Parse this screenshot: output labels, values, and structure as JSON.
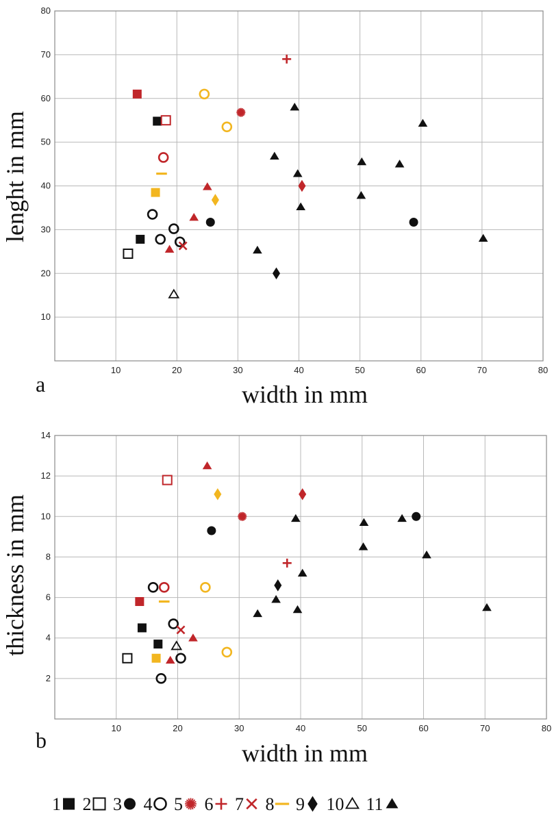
{
  "colors": {
    "black": "#111111",
    "red": "#c0262a",
    "yellow": "#f2b620"
  },
  "legend": [
    {
      "id": "1",
      "label": "1",
      "marker": "square",
      "fill": true,
      "color": "#111111"
    },
    {
      "id": "2",
      "label": "2",
      "marker": "square",
      "fill": false,
      "color": "#111111"
    },
    {
      "id": "3",
      "label": "3",
      "marker": "circle",
      "fill": true,
      "color": "#111111"
    },
    {
      "id": "4",
      "label": "4",
      "marker": "circle",
      "fill": false,
      "color": "#111111"
    },
    {
      "id": "5",
      "label": "5",
      "marker": "star",
      "fill": true,
      "color": "#c0262a"
    },
    {
      "id": "6",
      "label": "6",
      "marker": "plus",
      "fill": true,
      "color": "#c0262a"
    },
    {
      "id": "7",
      "label": "7",
      "marker": "cross",
      "fill": true,
      "color": "#c0262a"
    },
    {
      "id": "8",
      "label": "8",
      "marker": "dash",
      "fill": true,
      "color": "#f2b620"
    },
    {
      "id": "9",
      "label": "9",
      "marker": "diamond",
      "fill": true,
      "color": "#111111"
    },
    {
      "id": "10",
      "label": "10",
      "marker": "triangle",
      "fill": false,
      "color": "#111111"
    },
    {
      "id": "11",
      "label": "11",
      "marker": "triangle",
      "fill": true,
      "color": "#111111"
    }
  ],
  "chart_data": [
    {
      "type": "scatter",
      "panel": "a",
      "xlabel": "width in mm",
      "ylabel": "lenght in mm",
      "xlim": [
        0,
        80
      ],
      "ylim": [
        0,
        80
      ],
      "xticks": [
        10,
        20,
        30,
        40,
        50,
        60,
        70,
        80
      ],
      "yticks": [
        10,
        20,
        30,
        40,
        50,
        60,
        70,
        80
      ],
      "grid": true,
      "points": [
        {
          "x": 13.5,
          "y": 61,
          "marker": "square",
          "fill": true,
          "color": "#c0262a"
        },
        {
          "x": 16.8,
          "y": 54.8,
          "marker": "square",
          "fill": true,
          "color": "#111111"
        },
        {
          "x": 18.2,
          "y": 55,
          "marker": "square",
          "fill": false,
          "color": "#c0262a"
        },
        {
          "x": 14,
          "y": 27.8,
          "marker": "square",
          "fill": true,
          "color": "#111111"
        },
        {
          "x": 12,
          "y": 24.5,
          "marker": "square",
          "fill": false,
          "color": "#111111"
        },
        {
          "x": 16.5,
          "y": 38.5,
          "marker": "square",
          "fill": true,
          "color": "#f2b620"
        },
        {
          "x": 24.5,
          "y": 61,
          "marker": "circle",
          "fill": false,
          "color": "#f2b620"
        },
        {
          "x": 28.2,
          "y": 53.5,
          "marker": "circle",
          "fill": false,
          "color": "#f2b620"
        },
        {
          "x": 17.8,
          "y": 46.5,
          "marker": "circle",
          "fill": false,
          "color": "#c0262a"
        },
        {
          "x": 16,
          "y": 33.5,
          "marker": "circle",
          "fill": false,
          "color": "#111111"
        },
        {
          "x": 19.5,
          "y": 30.2,
          "marker": "circle",
          "fill": false,
          "color": "#111111"
        },
        {
          "x": 17.3,
          "y": 27.8,
          "marker": "circle",
          "fill": false,
          "color": "#111111"
        },
        {
          "x": 20.5,
          "y": 27.2,
          "marker": "circle",
          "fill": false,
          "color": "#111111"
        },
        {
          "x": 25.5,
          "y": 31.7,
          "marker": "circle",
          "fill": true,
          "color": "#111111"
        },
        {
          "x": 58.8,
          "y": 31.7,
          "marker": "circle",
          "fill": true,
          "color": "#111111"
        },
        {
          "x": 30.5,
          "y": 56.8,
          "marker": "star",
          "fill": true,
          "color": "#c0262a"
        },
        {
          "x": 38,
          "y": 69,
          "marker": "plus",
          "fill": true,
          "color": "#c0262a"
        },
        {
          "x": 21,
          "y": 26.3,
          "marker": "cross",
          "fill": true,
          "color": "#c0262a"
        },
        {
          "x": 17.5,
          "y": 42.8,
          "marker": "dash",
          "fill": true,
          "color": "#f2b620"
        },
        {
          "x": 26.3,
          "y": 36.8,
          "marker": "diamond",
          "fill": true,
          "color": "#f2b620"
        },
        {
          "x": 40.5,
          "y": 40,
          "marker": "diamond",
          "fill": true,
          "color": "#c0262a"
        },
        {
          "x": 36.3,
          "y": 20,
          "marker": "diamond",
          "fill": true,
          "color": "#111111"
        },
        {
          "x": 25,
          "y": 39.8,
          "marker": "triangle",
          "fill": true,
          "color": "#c0262a"
        },
        {
          "x": 22.8,
          "y": 32.8,
          "marker": "triangle",
          "fill": true,
          "color": "#c0262a"
        },
        {
          "x": 18.8,
          "y": 25.5,
          "marker": "triangle",
          "fill": true,
          "color": "#c0262a"
        },
        {
          "x": 19.5,
          "y": 15.2,
          "marker": "triangle",
          "fill": false,
          "color": "#111111"
        },
        {
          "x": 39.3,
          "y": 58,
          "marker": "triangle",
          "fill": true,
          "color": "#111111"
        },
        {
          "x": 36,
          "y": 46.8,
          "marker": "triangle",
          "fill": true,
          "color": "#111111"
        },
        {
          "x": 39.8,
          "y": 42.8,
          "marker": "triangle",
          "fill": true,
          "color": "#111111"
        },
        {
          "x": 40.3,
          "y": 35.2,
          "marker": "triangle",
          "fill": true,
          "color": "#111111"
        },
        {
          "x": 33.2,
          "y": 25.3,
          "marker": "triangle",
          "fill": true,
          "color": "#111111"
        },
        {
          "x": 50.3,
          "y": 45.5,
          "marker": "triangle",
          "fill": true,
          "color": "#111111"
        },
        {
          "x": 50.2,
          "y": 37.8,
          "marker": "triangle",
          "fill": true,
          "color": "#111111"
        },
        {
          "x": 56.5,
          "y": 45,
          "marker": "triangle",
          "fill": true,
          "color": "#111111"
        },
        {
          "x": 60.3,
          "y": 54.3,
          "marker": "triangle",
          "fill": true,
          "color": "#111111"
        },
        {
          "x": 70.2,
          "y": 28,
          "marker": "triangle",
          "fill": true,
          "color": "#111111"
        }
      ]
    },
    {
      "type": "scatter",
      "panel": "b",
      "xlabel": "width in mm",
      "ylabel": "thickness in mm",
      "xlim": [
        0,
        80
      ],
      "ylim": [
        0,
        14
      ],
      "xticks": [
        10,
        20,
        30,
        40,
        50,
        60,
        70,
        80
      ],
      "yticks": [
        2,
        4,
        6,
        8,
        10,
        12,
        14
      ],
      "grid": true,
      "points": [
        {
          "x": 18.3,
          "y": 11.8,
          "marker": "square",
          "fill": false,
          "color": "#c0262a"
        },
        {
          "x": 13.8,
          "y": 5.8,
          "marker": "square",
          "fill": true,
          "color": "#c0262a"
        },
        {
          "x": 14.2,
          "y": 4.5,
          "marker": "square",
          "fill": true,
          "color": "#111111"
        },
        {
          "x": 16.8,
          "y": 3.7,
          "marker": "square",
          "fill": true,
          "color": "#111111"
        },
        {
          "x": 11.8,
          "y": 3.0,
          "marker": "square",
          "fill": false,
          "color": "#111111"
        },
        {
          "x": 16.5,
          "y": 3.0,
          "marker": "square",
          "fill": true,
          "color": "#f2b620"
        },
        {
          "x": 16,
          "y": 6.5,
          "marker": "circle",
          "fill": false,
          "color": "#111111"
        },
        {
          "x": 17.8,
          "y": 6.5,
          "marker": "circle",
          "fill": false,
          "color": "#c0262a"
        },
        {
          "x": 24.5,
          "y": 6.5,
          "marker": "circle",
          "fill": false,
          "color": "#f2b620"
        },
        {
          "x": 19.3,
          "y": 4.7,
          "marker": "circle",
          "fill": false,
          "color": "#111111"
        },
        {
          "x": 20.5,
          "y": 3.0,
          "marker": "circle",
          "fill": false,
          "color": "#111111"
        },
        {
          "x": 17.3,
          "y": 2.0,
          "marker": "circle",
          "fill": false,
          "color": "#111111"
        },
        {
          "x": 28,
          "y": 3.3,
          "marker": "circle",
          "fill": false,
          "color": "#f2b620"
        },
        {
          "x": 25.5,
          "y": 9.3,
          "marker": "circle",
          "fill": true,
          "color": "#111111"
        },
        {
          "x": 58.8,
          "y": 10,
          "marker": "circle",
          "fill": true,
          "color": "#111111"
        },
        {
          "x": 30.5,
          "y": 10,
          "marker": "star",
          "fill": true,
          "color": "#c0262a"
        },
        {
          "x": 37.8,
          "y": 7.7,
          "marker": "plus",
          "fill": true,
          "color": "#c0262a"
        },
        {
          "x": 20.5,
          "y": 4.4,
          "marker": "cross",
          "fill": true,
          "color": "#c0262a"
        },
        {
          "x": 17.8,
          "y": 5.8,
          "marker": "dash",
          "fill": true,
          "color": "#f2b620"
        },
        {
          "x": 26.5,
          "y": 11.1,
          "marker": "diamond",
          "fill": true,
          "color": "#f2b620"
        },
        {
          "x": 40.3,
          "y": 11.1,
          "marker": "diamond",
          "fill": true,
          "color": "#c0262a"
        },
        {
          "x": 36.3,
          "y": 6.6,
          "marker": "diamond",
          "fill": true,
          "color": "#111111"
        },
        {
          "x": 24.8,
          "y": 12.5,
          "marker": "triangle",
          "fill": true,
          "color": "#c0262a"
        },
        {
          "x": 22.5,
          "y": 4.0,
          "marker": "triangle",
          "fill": true,
          "color": "#c0262a"
        },
        {
          "x": 18.8,
          "y": 2.9,
          "marker": "triangle",
          "fill": true,
          "color": "#c0262a"
        },
        {
          "x": 19.8,
          "y": 3.6,
          "marker": "triangle",
          "fill": false,
          "color": "#111111"
        },
        {
          "x": 39.2,
          "y": 9.9,
          "marker": "triangle",
          "fill": true,
          "color": "#111111"
        },
        {
          "x": 40.3,
          "y": 7.2,
          "marker": "triangle",
          "fill": true,
          "color": "#111111"
        },
        {
          "x": 36,
          "y": 5.9,
          "marker": "triangle",
          "fill": true,
          "color": "#111111"
        },
        {
          "x": 39.5,
          "y": 5.4,
          "marker": "triangle",
          "fill": true,
          "color": "#111111"
        },
        {
          "x": 33,
          "y": 5.2,
          "marker": "triangle",
          "fill": true,
          "color": "#111111"
        },
        {
          "x": 50.3,
          "y": 9.7,
          "marker": "triangle",
          "fill": true,
          "color": "#111111"
        },
        {
          "x": 50.2,
          "y": 8.5,
          "marker": "triangle",
          "fill": true,
          "color": "#111111"
        },
        {
          "x": 56.5,
          "y": 9.9,
          "marker": "triangle",
          "fill": true,
          "color": "#111111"
        },
        {
          "x": 60.5,
          "y": 8.1,
          "marker": "triangle",
          "fill": true,
          "color": "#111111"
        },
        {
          "x": 70.3,
          "y": 5.5,
          "marker": "triangle",
          "fill": true,
          "color": "#111111"
        }
      ]
    }
  ]
}
